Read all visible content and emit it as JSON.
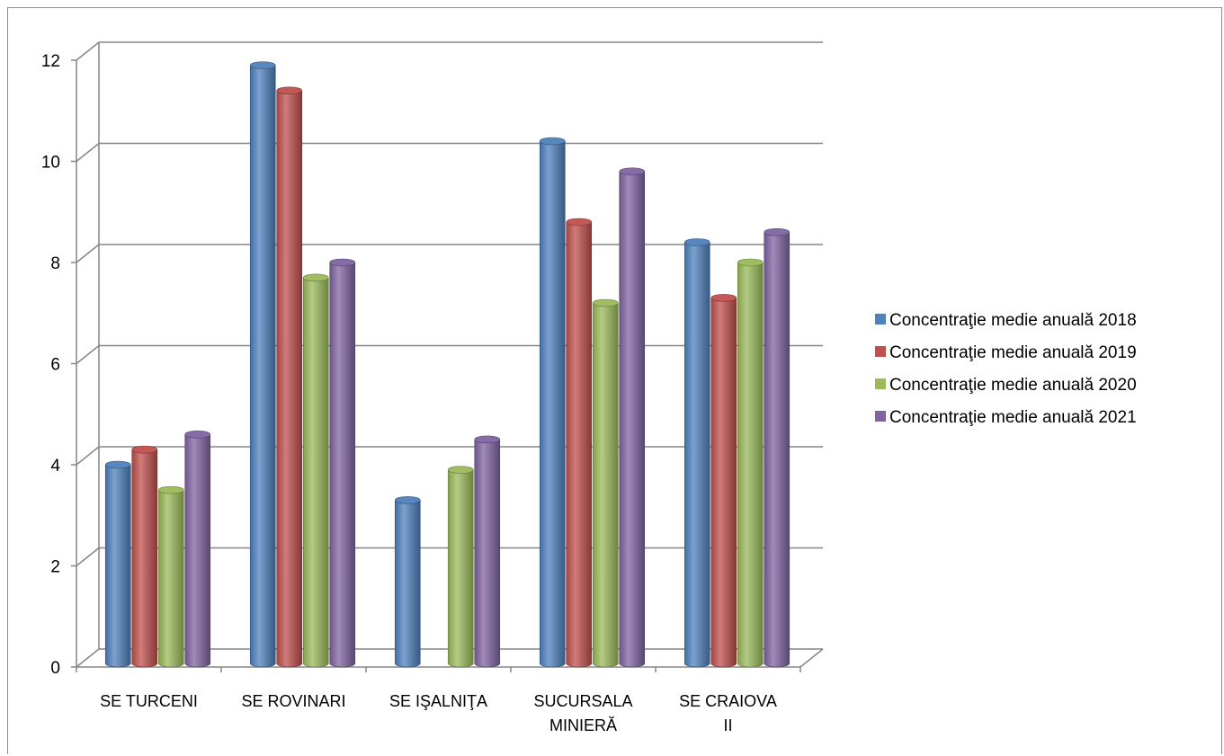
{
  "chart_data": {
    "type": "bar",
    "categories": [
      [
        "SE TURCENI"
      ],
      [
        "SE ROVINARI"
      ],
      [
        "SE IŞALNIŢA"
      ],
      [
        "SUCURSALA",
        "MINIERĂ"
      ],
      [
        "SE CRAIOVA",
        "II"
      ]
    ],
    "series": [
      {
        "name": "Concentraţie medie anuală 2018",
        "color": "#4F81BD",
        "values": [
          4.0,
          11.9,
          3.3,
          10.4,
          8.4
        ]
      },
      {
        "name": "Concentraţie medie anuală 2019",
        "color": "#C0504D",
        "values": [
          4.3,
          11.4,
          null,
          8.8,
          7.3
        ]
      },
      {
        "name": "Concentraţie medie anuală 2020",
        "color": "#9BBB59",
        "values": [
          3.5,
          7.7,
          3.9,
          7.2,
          8.0
        ]
      },
      {
        "name": "Concentraţie medie anuală 2021",
        "color": "#8064A2",
        "values": [
          4.6,
          8.0,
          4.5,
          9.8,
          8.6
        ]
      }
    ],
    "yticks": [
      "0",
      "2",
      "4",
      "6",
      "8",
      "10",
      "12"
    ],
    "ylim": [
      0,
      12
    ],
    "grid": true,
    "legend_position": "right"
  }
}
